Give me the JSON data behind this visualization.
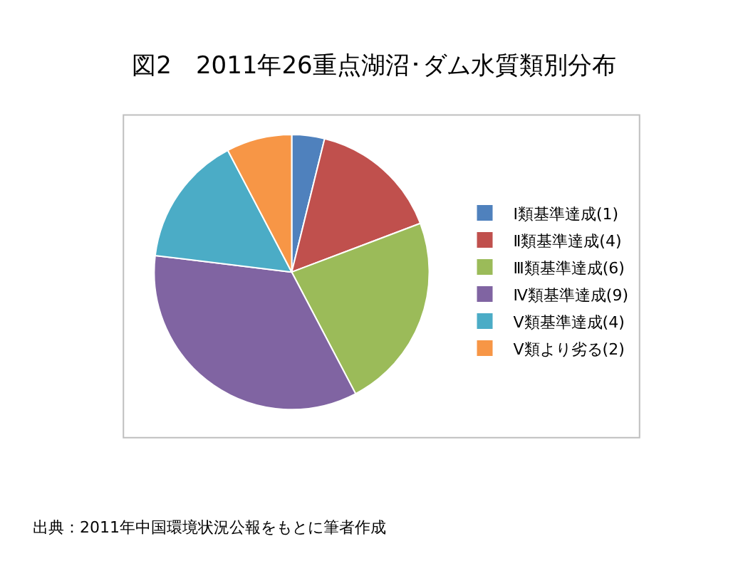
{
  "chart_data": {
    "type": "pie",
    "title": "図2　2011年26重点湖沼･ダム水質類別分布",
    "categories": [
      "Ⅰ類基準達成(1)",
      "Ⅱ類基準達成(4)",
      "Ⅲ類基準達成(6)",
      "Ⅳ類基準達成(9)",
      "Ⅴ類基準達成(4)",
      "Ⅴ類より劣る(2)"
    ],
    "values": [
      1,
      4,
      6,
      9,
      4,
      2
    ],
    "colors": [
      "#4f81bd",
      "#c0504d",
      "#9bbb59",
      "#8064a2",
      "#4bacc6",
      "#f79646"
    ],
    "legend": "right",
    "annotations": [
      "出典：2011年中国環境状況公報をもとに筆者作成"
    ]
  }
}
